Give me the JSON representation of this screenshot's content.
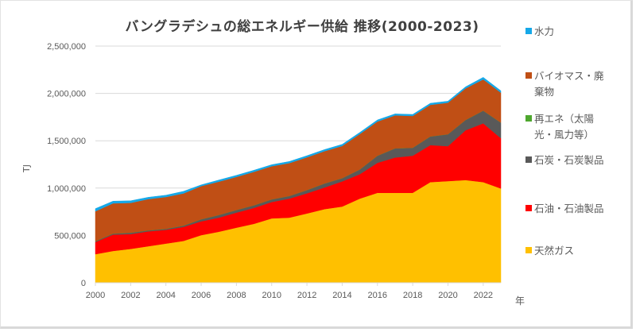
{
  "chart_data": {
    "type": "area",
    "stacked": true,
    "title": "バングラデシュの総エネルギー供給 推移(2000-2023)",
    "xlabel": "年",
    "ylabel": "TJ",
    "ylim": [
      0,
      2500000
    ],
    "yticks": [
      0,
      500000,
      1000000,
      1500000,
      2000000,
      2500000
    ],
    "ytick_labels": [
      "0",
      "500,000",
      "1,000,000",
      "1,500,000",
      "2,000,000",
      "2,500,000"
    ],
    "xlim": [
      2000,
      2023
    ],
    "xticks": [
      2000,
      2002,
      2004,
      2006,
      2008,
      2010,
      2012,
      2014,
      2016,
      2018,
      2020,
      2022
    ],
    "xtick_labels": [
      "2000",
      "2002",
      "2004",
      "2006",
      "2008",
      "2010",
      "2012",
      "2014",
      "2016",
      "2018",
      "2020",
      "2022"
    ],
    "grid": true,
    "legend_position": "right",
    "x": [
      2000,
      2001,
      2002,
      2003,
      2004,
      2005,
      2006,
      2007,
      2008,
      2009,
      2010,
      2011,
      2012,
      2013,
      2014,
      2015,
      2016,
      2017,
      2018,
      2019,
      2020,
      2021,
      2022,
      2023
    ],
    "series": [
      {
        "name": "天然ガス",
        "color": "#FFC000",
        "values": [
          302000,
          336000,
          358000,
          386000,
          414000,
          442000,
          503000,
          539000,
          582000,
          623000,
          680000,
          688000,
          732000,
          778000,
          805000,
          889000,
          950000,
          950000,
          950000,
          1063000,
          1074000,
          1085000,
          1063000,
          996000
        ]
      },
      {
        "name": "石油・石油製品",
        "color": "#FF0000",
        "values": [
          128000,
          173000,
          156000,
          157000,
          145000,
          148000,
          146000,
          149000,
          159000,
          168000,
          173000,
          201000,
          213000,
          229000,
          266000,
          258000,
          317000,
          373000,
          392000,
          391000,
          369000,
          526000,
          621000,
          531000
        ]
      },
      {
        "name": "石炭・石炭製品",
        "color": "#595959",
        "values": [
          8000,
          10000,
          14000,
          10000,
          10000,
          13000,
          21000,
          27000,
          27000,
          27000,
          27000,
          27000,
          33000,
          41000,
          33000,
          49000,
          74000,
          96000,
          83000,
          91000,
          125000,
          108000,
          133000,
          164000
        ]
      },
      {
        "name": "再エネ（太陽光・風力等）",
        "color": "#4EA72E",
        "values": [
          1000,
          1000,
          1000,
          1000,
          1000,
          1000,
          1000,
          1000,
          1000,
          1000,
          1000,
          1000,
          1000,
          1000,
          1000,
          1000,
          1000,
          1000,
          1000,
          1000,
          1000,
          1000,
          1000,
          1000
        ]
      },
      {
        "name": "バイオマス・廃棄物",
        "color": "#C04F15",
        "values": [
          316000,
          319000,
          315000,
          330000,
          336000,
          340000,
          350000,
          352000,
          349000,
          353000,
          350000,
          347000,
          346000,
          341000,
          340000,
          374000,
          361000,
          348000,
          336000,
          333000,
          333000,
          333000,
          330000,
          316000
        ]
      },
      {
        "name": "水力",
        "color": "#15A8E8",
        "values": [
          28000,
          23000,
          22000,
          19000,
          19000,
          22000,
          13000,
          17000,
          17000,
          17000,
          16000,
          17000,
          17000,
          17000,
          17000,
          17000,
          17000,
          16000,
          16000,
          17000,
          16000,
          17000,
          22000,
          20000
        ]
      }
    ]
  },
  "legend": {
    "items": [
      {
        "lines": [
          "水力"
        ],
        "color": "#15A8E8"
      },
      {
        "lines": [
          "バイオマス・廃",
          "棄物"
        ],
        "color": "#C04F15"
      },
      {
        "lines": [
          "再エネ（太陽",
          "光・風力等）"
        ],
        "color": "#4EA72E"
      },
      {
        "lines": [
          "石炭・石炭製品"
        ],
        "color": "#595959"
      },
      {
        "lines": [
          "石油・石油製品"
        ],
        "color": "#FF0000"
      },
      {
        "lines": [
          "天然ガス"
        ],
        "color": "#FFC000"
      }
    ]
  }
}
